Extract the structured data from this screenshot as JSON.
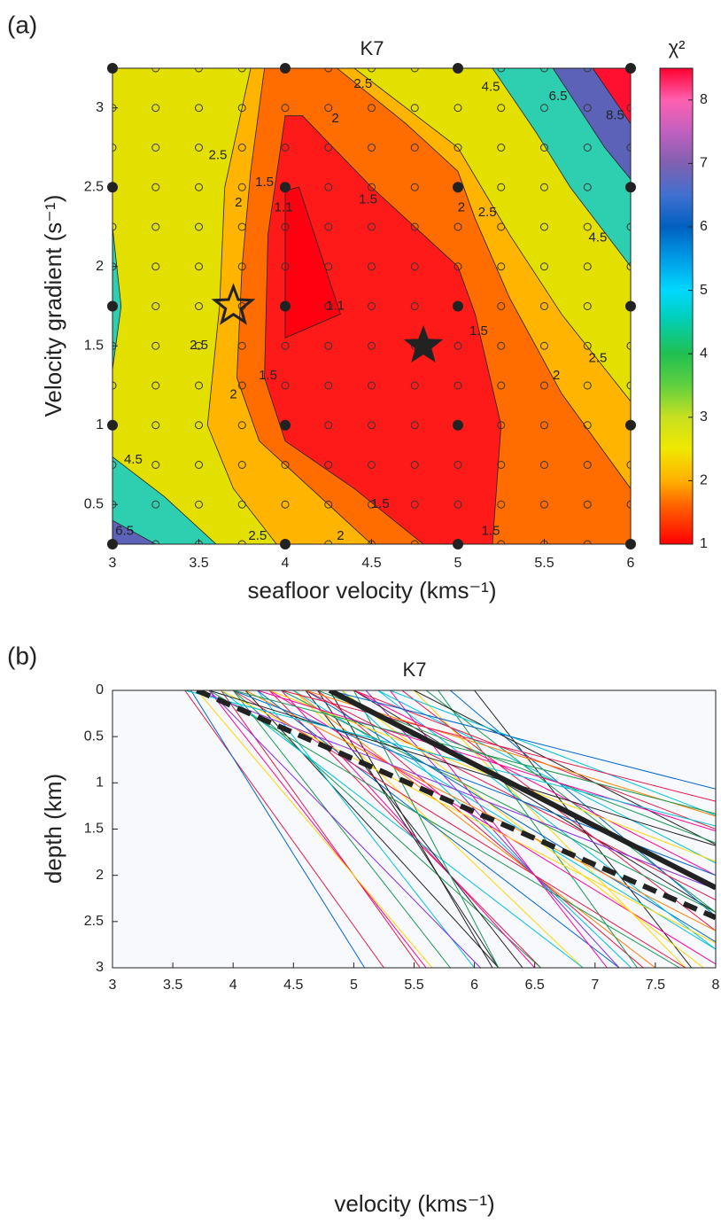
{
  "chart_data": [
    {
      "type": "contour",
      "panel_label": "(a)",
      "title": "K7",
      "xlabel": "seafloor velocity (kms⁻¹)",
      "ylabel": "Velocity gradient (s⁻¹)",
      "xlim": [
        3,
        6
      ],
      "ylim": [
        0.25,
        3.25
      ],
      "xticks": [
        3,
        3.5,
        4,
        4.5,
        5,
        5.5,
        6
      ],
      "yticks": [
        0.5,
        1,
        1.5,
        2,
        2.5,
        3
      ],
      "background": "#e3e000",
      "regions": [
        {
          "level": 2,
          "color": "#ffb400",
          "polygon": [
            [
              3.8,
              3.25
            ],
            [
              4.4,
              3.25
            ],
            [
              5.0,
              2.75
            ],
            [
              5.3,
              2.2
            ],
            [
              5.6,
              1.7
            ],
            [
              6,
              1.15
            ],
            [
              6,
              0.25
            ],
            [
              3.95,
              0.25
            ],
            [
              3.7,
              0.6
            ],
            [
              3.55,
              1.0
            ],
            [
              3.62,
              1.75
            ],
            [
              3.65,
              2.5
            ]
          ]
        },
        {
          "level": 1.5,
          "color": "#ff6c00",
          "polygon": [
            [
              3.88,
              3.25
            ],
            [
              4.3,
              3.25
            ],
            [
              4.7,
              2.9
            ],
            [
              5.0,
              2.6
            ],
            [
              5.1,
              2.3
            ],
            [
              5.3,
              1.8
            ],
            [
              5.6,
              1.2
            ],
            [
              6,
              0.6
            ],
            [
              6,
              0.25
            ],
            [
              4.5,
              0.25
            ],
            [
              3.85,
              0.9
            ],
            [
              3.72,
              1.3
            ],
            [
              3.75,
              2.0
            ],
            [
              3.8,
              2.6
            ]
          ]
        },
        {
          "level": 1.1,
          "color": "#ff1a1a",
          "polygon": [
            [
              4.0,
              2.95
            ],
            [
              4.1,
              2.95
            ],
            [
              4.5,
              2.5
            ],
            [
              5.0,
              2.0
            ],
            [
              5.1,
              1.7
            ],
            [
              5.25,
              1.0
            ],
            [
              5.2,
              0.25
            ],
            [
              4.8,
              0.25
            ],
            [
              4.4,
              0.6
            ],
            [
              4.0,
              0.9
            ],
            [
              3.88,
              1.3
            ],
            [
              3.9,
              2.2
            ]
          ]
        },
        {
          "level": 1,
          "color": "#ff0010",
          "polygon": [
            [
              4.0,
              2.48
            ],
            [
              4.08,
              2.5
            ],
            [
              4.32,
              1.7
            ],
            [
              4.0,
              1.55
            ]
          ]
        },
        {
          "level": 4.5,
          "color": "#2ecfb0",
          "polygon": [
            [
              5.2,
              3.25
            ],
            [
              6,
              3.25
            ],
            [
              6,
              2.0
            ],
            [
              5.65,
              2.5
            ],
            [
              5.45,
              2.85
            ]
          ]
        },
        {
          "level": 6.5,
          "color": "#5b62b8",
          "polygon": [
            [
              5.55,
              3.25
            ],
            [
              6,
              3.25
            ],
            [
              6,
              2.55
            ],
            [
              5.85,
              2.75
            ]
          ]
        },
        {
          "level": 8.5,
          "color": "#ff1030",
          "polygon": [
            [
              5.78,
              3.25
            ],
            [
              6,
              3.25
            ],
            [
              6,
              2.9
            ]
          ]
        },
        {
          "level": 4.5,
          "color": "#2ecfb0",
          "polygon": [
            [
              3,
              0.8
            ],
            [
              3,
              0.25
            ],
            [
              3.6,
              0.25
            ],
            [
              3.3,
              0.55
            ]
          ]
        },
        {
          "level": 6.5,
          "color": "#5b62b8",
          "polygon": [
            [
              3,
              0.4
            ],
            [
              3,
              0.25
            ],
            [
              3.25,
              0.25
            ]
          ]
        },
        {
          "level": 4.5,
          "color": "#2ecfb0",
          "polygon": [
            [
              3,
              2.25
            ],
            [
              3.05,
              1.75
            ],
            [
              3,
              1.35
            ]
          ]
        }
      ],
      "contour_labels": [
        {
          "value": 2.5,
          "x": 3.61,
          "y": 2.7
        },
        {
          "value": 2,
          "x": 3.73,
          "y": 2.4
        },
        {
          "value": 1.5,
          "x": 3.88,
          "y": 2.53
        },
        {
          "value": 1.1,
          "x": 3.99,
          "y": 2.37
        },
        {
          "value": 1.5,
          "x": 4.48,
          "y": 2.42
        },
        {
          "value": 2,
          "x": 4.29,
          "y": 2.93
        },
        {
          "value": 2.5,
          "x": 4.45,
          "y": 3.15
        },
        {
          "value": 4.5,
          "x": 5.19,
          "y": 3.13
        },
        {
          "value": 6.5,
          "x": 5.58,
          "y": 3.07
        },
        {
          "value": 8.5,
          "x": 5.91,
          "y": 2.95
        },
        {
          "value": 2,
          "x": 5.02,
          "y": 2.37
        },
        {
          "value": 2.5,
          "x": 5.17,
          "y": 2.34
        },
        {
          "value": 4.5,
          "x": 5.81,
          "y": 2.18
        },
        {
          "value": 1.1,
          "x": 4.29,
          "y": 1.75
        },
        {
          "value": 1.5,
          "x": 5.12,
          "y": 1.59
        },
        {
          "value": 2.5,
          "x": 5.81,
          "y": 1.42
        },
        {
          "value": 2,
          "x": 5.57,
          "y": 1.31
        },
        {
          "value": 2.5,
          "x": 3.5,
          "y": 1.5
        },
        {
          "value": 1.5,
          "x": 3.9,
          "y": 1.31
        },
        {
          "value": 2,
          "x": 3.7,
          "y": 1.19
        },
        {
          "value": 4.5,
          "x": 3.12,
          "y": 0.78
        },
        {
          "value": 6.5,
          "x": 3.07,
          "y": 0.33
        },
        {
          "value": 2.5,
          "x": 3.84,
          "y": 0.3
        },
        {
          "value": 2,
          "x": 4.32,
          "y": 0.3
        },
        {
          "value": 1.5,
          "x": 4.55,
          "y": 0.5
        },
        {
          "value": 1.5,
          "x": 5.19,
          "y": 0.33
        }
      ],
      "grid_fine": {
        "x": [
          3,
          3.25,
          3.5,
          3.75,
          4,
          4.25,
          4.5,
          4.75,
          5,
          5.25,
          5.5,
          5.75,
          6
        ],
        "y": [
          0.25,
          0.5,
          0.75,
          1,
          1.25,
          1.5,
          1.75,
          2,
          2.25,
          2.5,
          2.75,
          3,
          3.25
        ]
      },
      "grid_coarse": {
        "x": [
          3,
          4,
          5,
          6
        ],
        "y": [
          0.25,
          1,
          1.75,
          2.5,
          3.25
        ]
      },
      "markers": [
        {
          "x": 4.8,
          "y": 1.5,
          "style": "filled"
        },
        {
          "x": 3.7,
          "y": 1.75,
          "style": "open"
        }
      ],
      "colorbar": {
        "label": "χ²",
        "lim": [
          1,
          8.5
        ],
        "ticks": [
          1,
          2,
          3,
          4,
          5,
          6,
          7,
          8
        ],
        "colormap": [
          [
            1,
            "#ff0000"
          ],
          [
            1.6,
            "#ff6000"
          ],
          [
            2,
            "#ffb000"
          ],
          [
            2.5,
            "#f0e800"
          ],
          [
            3,
            "#c8e020"
          ],
          [
            3.5,
            "#60d040"
          ],
          [
            4,
            "#20c050"
          ],
          [
            4.6,
            "#00d0c0"
          ],
          [
            5,
            "#00d8ff"
          ],
          [
            5.6,
            "#0090e0"
          ],
          [
            6,
            "#0060c0"
          ],
          [
            6.5,
            "#4070d0"
          ],
          [
            7,
            "#8060b0"
          ],
          [
            7.5,
            "#c060c0"
          ],
          [
            8,
            "#ff60b0"
          ],
          [
            8.5,
            "#ff0030"
          ]
        ]
      }
    },
    {
      "type": "line",
      "panel_label": "(b)",
      "title": "K7",
      "xlabel": "velocity (kms⁻¹)",
      "ylabel": "depth (km)",
      "xlim": [
        3,
        8
      ],
      "ylim": [
        0,
        3
      ],
      "y_inverted": true,
      "background": "#f7f9fc",
      "xticks": [
        3,
        3.5,
        4,
        4.5,
        5,
        5.5,
        6,
        6.5,
        7,
        7.5,
        8
      ],
      "yticks": [
        0,
        0.5,
        1,
        1.5,
        2,
        2.5,
        3
      ],
      "profiles": [
        [
          3.6,
          0.55,
          "#e6194b"
        ],
        [
          3.65,
          0.48,
          "#0066cc"
        ],
        [
          3.8,
          0.6,
          "#ff00a0"
        ],
        [
          3.9,
          0.55,
          "#e6194b"
        ],
        [
          4.0,
          0.6,
          "#1a9850"
        ],
        [
          3.7,
          0.65,
          "#ffd700"
        ],
        [
          4.1,
          0.7,
          "#222222"
        ],
        [
          4.2,
          0.6,
          "#00c0e0"
        ],
        [
          3.8,
          0.75,
          "#8a2be2"
        ],
        [
          4.3,
          0.75,
          "#e6194b"
        ],
        [
          4.0,
          0.85,
          "#1a9850"
        ],
        [
          4.4,
          0.7,
          "#ff00a0"
        ],
        [
          4.5,
          0.8,
          "#ffd700"
        ],
        [
          4.2,
          1.0,
          "#0066cc"
        ],
        [
          3.9,
          1.0,
          "#00c0e0"
        ],
        [
          4.6,
          0.6,
          "#222222"
        ],
        [
          4.7,
          0.5,
          "#222222"
        ],
        [
          4.8,
          0.45,
          "#222222"
        ],
        [
          5.0,
          0.4,
          "#1a9850"
        ],
        [
          4.5,
          1.0,
          "#ff7f00"
        ],
        [
          4.7,
          0.9,
          "#e6194b"
        ],
        [
          4.9,
          0.8,
          "#00c0e0"
        ],
        [
          5.1,
          0.7,
          "#8a2be2"
        ],
        [
          5.3,
          0.6,
          "#ff00a0"
        ],
        [
          5.5,
          0.75,
          "#ffd700"
        ],
        [
          5.7,
          0.55,
          "#1a9850"
        ],
        [
          6.0,
          0.6,
          "#222222"
        ],
        [
          4.3,
          1.25,
          "#ff00a0"
        ],
        [
          4.5,
          1.25,
          "#00c0e0"
        ],
        [
          4.0,
          1.25,
          "#e6194b"
        ],
        [
          3.8,
          1.3,
          "#1a9850"
        ],
        [
          4.6,
          1.25,
          "#0066cc"
        ],
        [
          4.9,
          1.0,
          "#ffd700"
        ],
        [
          5.0,
          1.25,
          "#222222"
        ],
        [
          5.2,
          1.0,
          "#00c0e0"
        ],
        [
          5.4,
          1.0,
          "#e6194b"
        ],
        [
          5.6,
          1.0,
          "#1a9850"
        ],
        [
          5.8,
          0.9,
          "#0066cc"
        ],
        [
          3.9,
          1.5,
          "#ffd700"
        ],
        [
          4.1,
          1.5,
          "#ff7f00"
        ],
        [
          4.4,
          1.5,
          "#1a9850"
        ],
        [
          4.6,
          1.5,
          "#e6194b"
        ],
        [
          5.0,
          1.5,
          "#ff00a0"
        ],
        [
          5.2,
          1.5,
          "#00c0e0"
        ],
        [
          5.5,
          1.5,
          "#222222"
        ],
        [
          3.7,
          2.0,
          "#8a2be2"
        ],
        [
          4.0,
          2.0,
          "#0066cc"
        ],
        [
          4.3,
          2.0,
          "#ffd700"
        ],
        [
          4.7,
          2.0,
          "#1a9850"
        ],
        [
          5.0,
          2.0,
          "#e6194b"
        ],
        [
          5.3,
          2.0,
          "#00c0e0"
        ],
        [
          3.8,
          2.5,
          "#222222"
        ],
        [
          4.2,
          2.5,
          "#ff00a0"
        ],
        [
          4.6,
          2.5,
          "#ff7f00"
        ],
        [
          3.6,
          3.0,
          "#00c0e0"
        ],
        [
          4.0,
          3.0,
          "#1a9850"
        ],
        [
          4.4,
          3.0,
          "#e6194b"
        ],
        [
          4.8,
          3.0,
          "#0066cc"
        ]
      ],
      "highlight": [
        {
          "v0": 4.8,
          "gradient": 1.5,
          "color": "#222222",
          "style": "solid"
        },
        {
          "v0": 3.7,
          "gradient": 1.75,
          "color": "#222222",
          "style": "dashed"
        }
      ]
    }
  ]
}
